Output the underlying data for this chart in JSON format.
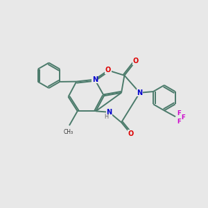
{
  "background_color": "#e8e8e8",
  "bond_color": "#4a7a6a",
  "atom_colors": {
    "O": "#dd0000",
    "N": "#0000cc",
    "F": "#cc00cc",
    "H": "#666666",
    "C": "#333333"
  },
  "figsize": [
    3.0,
    3.0
  ],
  "dpi": 100,
  "lw": 1.4,
  "fs": 7.0
}
